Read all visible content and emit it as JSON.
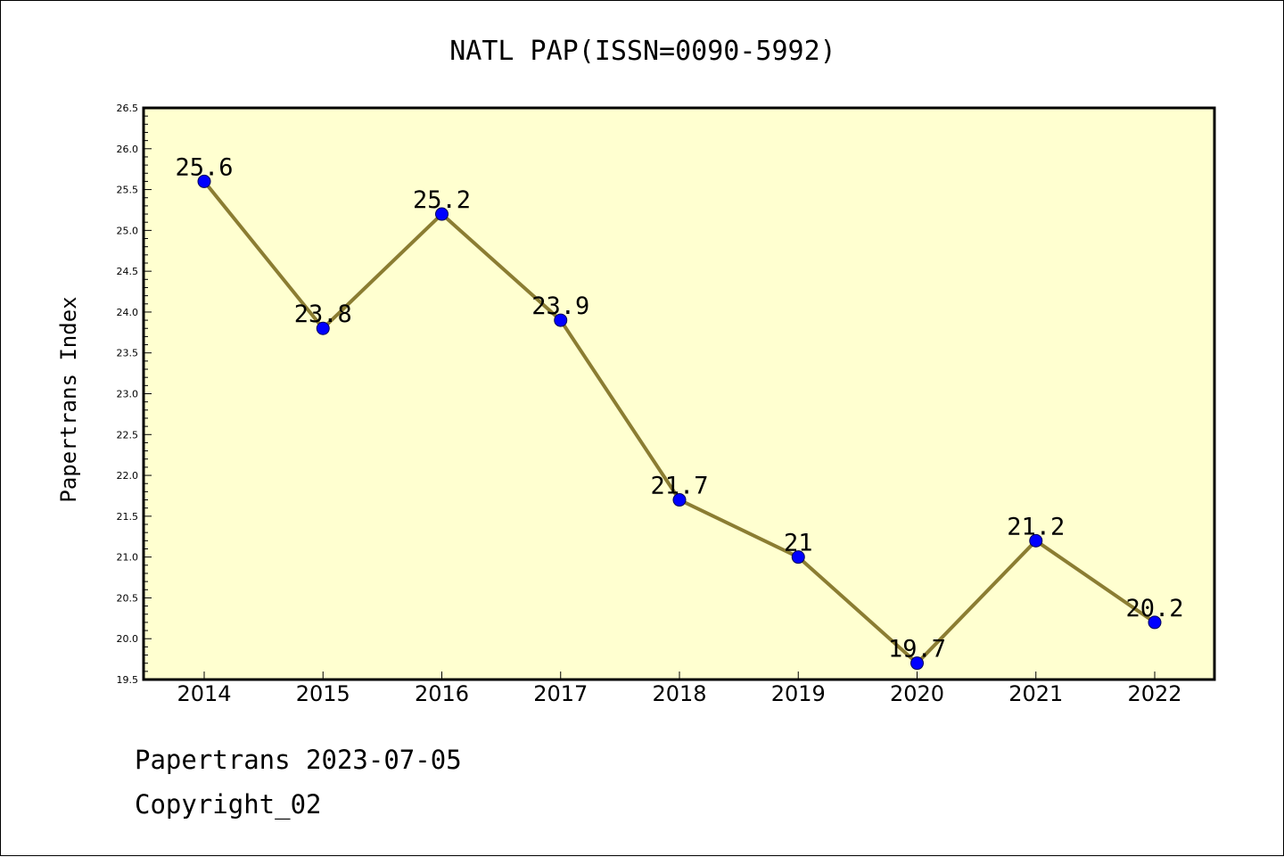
{
  "footer": {
    "line1": "Papertrans 2023-07-05",
    "line2": "Copyright_02"
  },
  "chart_data": {
    "type": "line",
    "title": "NATL PAP(ISSN=0090-5992)",
    "xlabel": "",
    "ylabel": "Papertrans Index",
    "categories": [
      "2014",
      "2015",
      "2016",
      "2017",
      "2018",
      "2019",
      "2020",
      "2021",
      "2022"
    ],
    "series": [
      {
        "values": [
          25.6,
          23.8,
          25.2,
          23.9,
          21.7,
          21.0,
          19.7,
          21.2,
          20.2
        ],
        "labels": [
          "25.6",
          "23.8",
          "25.2",
          "23.9",
          "21.7",
          "21",
          "19.7",
          "21.2",
          "20.2"
        ]
      }
    ],
    "ylim": [
      19.5,
      26.5
    ],
    "yticks": [
      "19.5",
      "20.0",
      "20.5",
      "21.0",
      "21.5",
      "22.0",
      "22.5",
      "23.0",
      "23.5",
      "24.0",
      "24.5",
      "25.0",
      "25.5",
      "26.0",
      "26.5"
    ],
    "grid": false,
    "legend": "none",
    "colors": {
      "plot_background": "#ffffd0",
      "line": "#8b7d32",
      "marker": "#0000ff"
    }
  }
}
